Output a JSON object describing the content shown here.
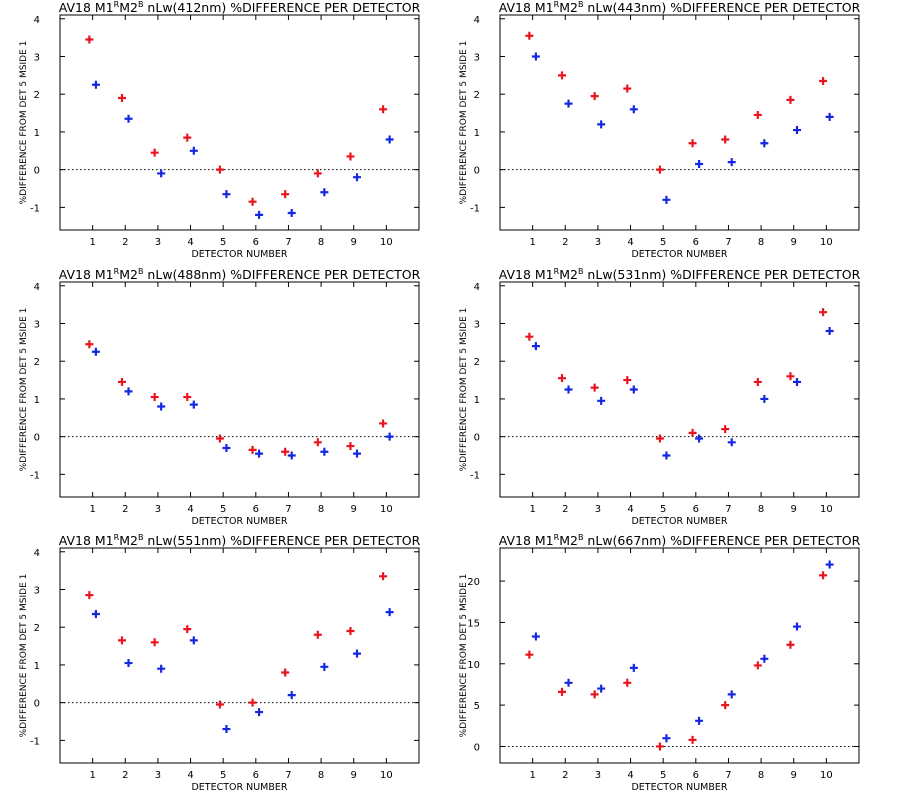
{
  "figure": {
    "background": "#ffffff",
    "series_colors": [
      "#e8141e",
      "#1428e0"
    ],
    "marker": "plus"
  },
  "chart_data": [
    {
      "type": "scatter",
      "title_prefix": "AV18 M1",
      "title_sup1": "R",
      "title_mid": "M2",
      "title_sup2": "B",
      "title_suffix": " nLw(412nm) %DIFFERENCE PER DETECTOR",
      "xlabel": "DETECTOR NUMBER",
      "ylabel": "%DIFFERENCE FROM DET 5 MSIDE 1",
      "xlim": [
        0,
        11
      ],
      "ylim": [
        -1.6,
        4.1
      ],
      "xticks": [
        1,
        2,
        3,
        4,
        5,
        6,
        7,
        8,
        9,
        10
      ],
      "yticks": [
        -1,
        0,
        1,
        2,
        3,
        4
      ],
      "zero_line": true,
      "series": [
        {
          "x": [
            0.9,
            1.9,
            2.9,
            3.9,
            4.9,
            5.9,
            6.9,
            7.9,
            8.9,
            9.9
          ],
          "y": [
            3.45,
            1.9,
            0.45,
            0.85,
            0.0,
            -0.85,
            -0.65,
            -0.1,
            0.35,
            1.6
          ]
        },
        {
          "x": [
            1.1,
            2.1,
            3.1,
            4.1,
            5.1,
            6.1,
            7.1,
            8.1,
            9.1,
            10.1
          ],
          "y": [
            2.25,
            1.35,
            -0.1,
            0.5,
            -0.65,
            -1.2,
            -1.15,
            -0.6,
            -0.2,
            0.8
          ]
        }
      ]
    },
    {
      "type": "scatter",
      "title_prefix": "AV18 M1",
      "title_sup1": "R",
      "title_mid": "M2",
      "title_sup2": "B",
      "title_suffix": " nLw(443nm) %DIFFERENCE PER DETECTOR",
      "xlabel": "DETECTOR NUMBER",
      "ylabel": "%DIFFERENCE FROM DET 5 MSIDE 1",
      "xlim": [
        0,
        11
      ],
      "ylim": [
        -1.6,
        4.1
      ],
      "xticks": [
        1,
        2,
        3,
        4,
        5,
        6,
        7,
        8,
        9,
        10
      ],
      "yticks": [
        -1,
        0,
        1,
        2,
        3,
        4
      ],
      "zero_line": true,
      "series": [
        {
          "x": [
            0.9,
            1.9,
            2.9,
            3.9,
            4.9,
            5.9,
            6.9,
            7.9,
            8.9,
            9.9
          ],
          "y": [
            3.55,
            2.5,
            1.95,
            2.15,
            0.0,
            0.7,
            0.8,
            1.45,
            1.85,
            2.35
          ]
        },
        {
          "x": [
            1.1,
            2.1,
            3.1,
            4.1,
            5.1,
            6.1,
            7.1,
            8.1,
            9.1,
            10.1
          ],
          "y": [
            3.0,
            1.75,
            1.2,
            1.6,
            -0.8,
            0.15,
            0.2,
            0.7,
            1.05,
            1.4
          ]
        }
      ]
    },
    {
      "type": "scatter",
      "title_prefix": "AV18 M1",
      "title_sup1": "R",
      "title_mid": "M2",
      "title_sup2": "B",
      "title_suffix": " nLw(488nm) %DIFFERENCE PER DETECTOR",
      "xlabel": "DETECTOR NUMBER",
      "ylabel": "%DIFFERENCE FROM DET 5 MSIDE 1",
      "xlim": [
        0,
        11
      ],
      "ylim": [
        -1.6,
        4.1
      ],
      "xticks": [
        1,
        2,
        3,
        4,
        5,
        6,
        7,
        8,
        9,
        10
      ],
      "yticks": [
        -1,
        0,
        1,
        2,
        3,
        4
      ],
      "zero_line": true,
      "series": [
        {
          "x": [
            0.9,
            1.9,
            2.9,
            3.9,
            4.9,
            5.9,
            6.9,
            7.9,
            8.9,
            9.9
          ],
          "y": [
            2.45,
            1.45,
            1.05,
            1.05,
            -0.05,
            -0.35,
            -0.4,
            -0.15,
            -0.25,
            0.35
          ]
        },
        {
          "x": [
            1.1,
            2.1,
            3.1,
            4.1,
            5.1,
            6.1,
            7.1,
            8.1,
            9.1,
            10.1
          ],
          "y": [
            2.25,
            1.2,
            0.8,
            0.85,
            -0.3,
            -0.45,
            -0.5,
            -0.4,
            -0.45,
            0.0
          ]
        }
      ]
    },
    {
      "type": "scatter",
      "title_prefix": "AV18 M1",
      "title_sup1": "R",
      "title_mid": "M2",
      "title_sup2": "B",
      "title_suffix": " nLw(531nm) %DIFFERENCE PER DETECTOR",
      "xlabel": "DETECTOR NUMBER",
      "ylabel": "%DIFFERENCE FROM DET 5 MSIDE 1",
      "xlim": [
        0,
        11
      ],
      "ylim": [
        -1.6,
        4.1
      ],
      "xticks": [
        1,
        2,
        3,
        4,
        5,
        6,
        7,
        8,
        9,
        10
      ],
      "yticks": [
        -1,
        0,
        1,
        2,
        3,
        4
      ],
      "zero_line": true,
      "series": [
        {
          "x": [
            0.9,
            1.9,
            2.9,
            3.9,
            4.9,
            5.9,
            6.9,
            7.9,
            8.9,
            9.9
          ],
          "y": [
            2.65,
            1.55,
            1.3,
            1.5,
            -0.05,
            0.1,
            0.2,
            1.45,
            1.6,
            3.3
          ]
        },
        {
          "x": [
            1.1,
            2.1,
            3.1,
            4.1,
            5.1,
            6.1,
            7.1,
            8.1,
            9.1,
            10.1
          ],
          "y": [
            2.4,
            1.25,
            0.95,
            1.25,
            -0.5,
            -0.05,
            -0.15,
            1.0,
            1.45,
            2.8
          ]
        }
      ]
    },
    {
      "type": "scatter",
      "title_prefix": "AV18 M1",
      "title_sup1": "R",
      "title_mid": "M2",
      "title_sup2": "B",
      "title_suffix": " nLw(551nm) %DIFFERENCE PER DETECTOR",
      "xlabel": "DETECTOR NUMBER",
      "ylabel": "%DIFFERENCE FROM DET 5 MSIDE 1",
      "xlim": [
        0,
        11
      ],
      "ylim": [
        -1.6,
        4.1
      ],
      "xticks": [
        1,
        2,
        3,
        4,
        5,
        6,
        7,
        8,
        9,
        10
      ],
      "yticks": [
        -1,
        0,
        1,
        2,
        3,
        4
      ],
      "zero_line": true,
      "series": [
        {
          "x": [
            0.9,
            1.9,
            2.9,
            3.9,
            4.9,
            5.9,
            6.9,
            7.9,
            8.9,
            9.9
          ],
          "y": [
            2.85,
            1.65,
            1.6,
            1.95,
            -0.05,
            0.0,
            0.8,
            1.8,
            1.9,
            3.35
          ]
        },
        {
          "x": [
            1.1,
            2.1,
            3.1,
            4.1,
            5.1,
            6.1,
            7.1,
            8.1,
            9.1,
            10.1
          ],
          "y": [
            2.35,
            1.05,
            0.9,
            1.65,
            -0.7,
            -0.25,
            0.2,
            0.95,
            1.3,
            2.4
          ]
        }
      ]
    },
    {
      "type": "scatter",
      "title_prefix": "AV18 M1",
      "title_sup1": "R",
      "title_mid": "M2",
      "title_sup2": "B",
      "title_suffix": " nLw(667nm) %DIFFERENCE PER DETECTOR",
      "xlabel": "DETECTOR NUMBER",
      "ylabel": "%DIFFERENCE FROM DET 5 MSIDE 1",
      "xlim": [
        0,
        11
      ],
      "ylim": [
        -2,
        24
      ],
      "xticks": [
        1,
        2,
        3,
        4,
        5,
        6,
        7,
        8,
        9,
        10
      ],
      "yticks": [
        0,
        5,
        10,
        15,
        20
      ],
      "zero_line": true,
      "series": [
        {
          "x": [
            0.9,
            1.9,
            2.9,
            3.9,
            4.9,
            5.9,
            6.9,
            7.9,
            8.9,
            9.9
          ],
          "y": [
            11.1,
            6.6,
            6.3,
            7.7,
            0.0,
            0.8,
            5.0,
            9.8,
            12.3,
            20.7
          ]
        },
        {
          "x": [
            1.1,
            2.1,
            3.1,
            4.1,
            5.1,
            6.1,
            7.1,
            8.1,
            9.1,
            10.1
          ],
          "y": [
            13.3,
            7.7,
            7.0,
            9.5,
            1.0,
            3.1,
            6.3,
            10.6,
            14.5,
            22.0
          ]
        }
      ]
    }
  ]
}
